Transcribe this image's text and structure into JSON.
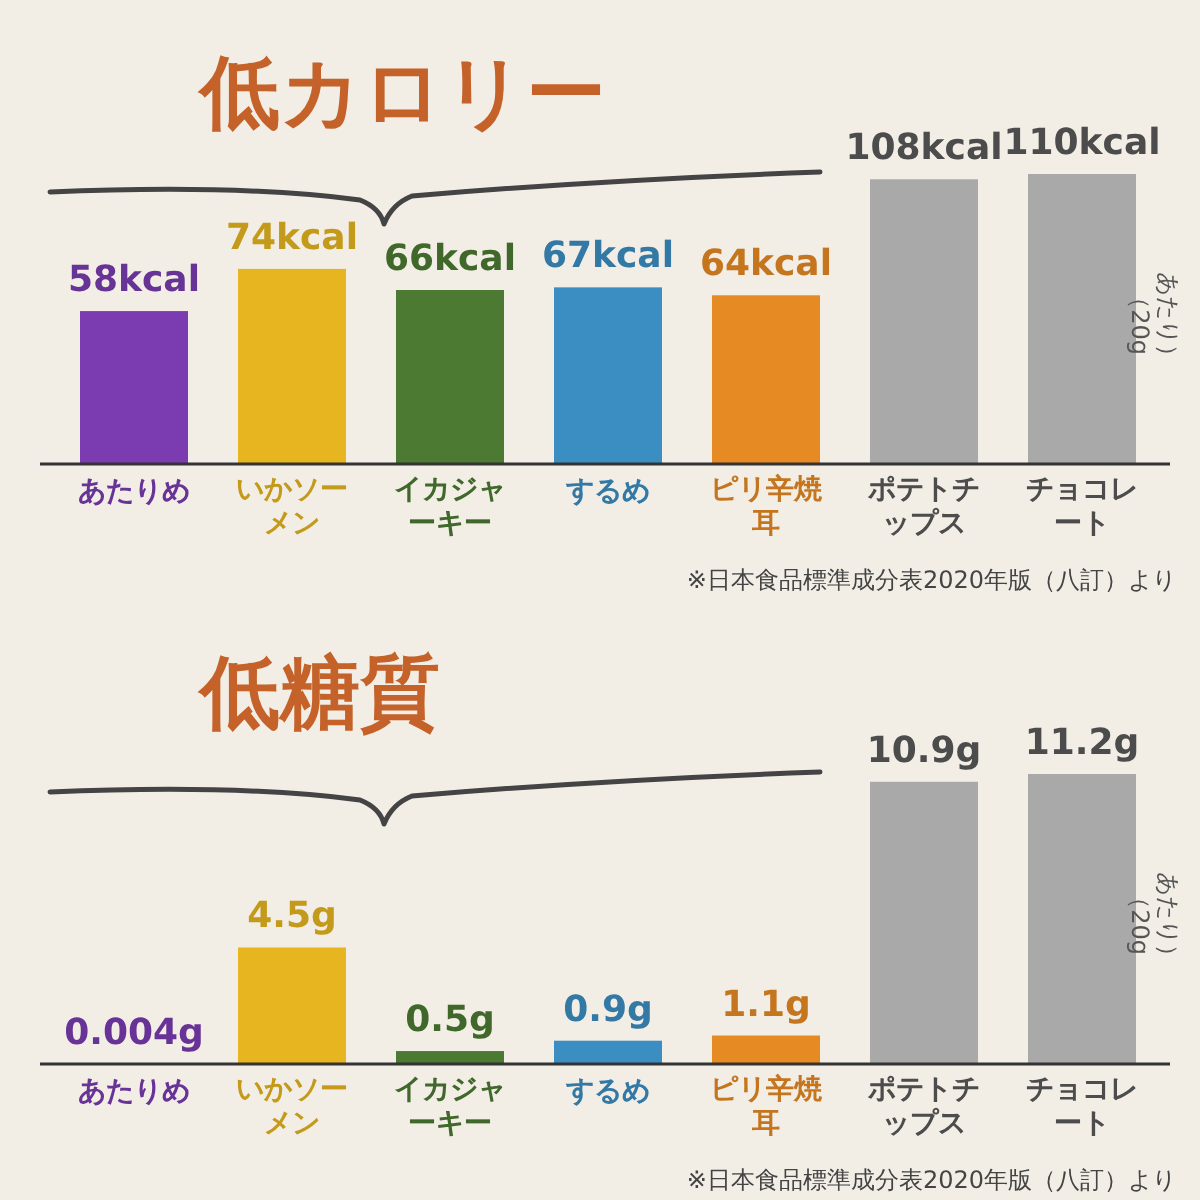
{
  "chart_data": [
    {
      "type": "bar",
      "title": "低カロリー",
      "categories": [
        "あたりめ",
        "いかソーメン",
        "イカジャーキー",
        "するめ",
        "ピリ辛焼耳",
        "ポテトチップス",
        "チョコレート"
      ],
      "values": [
        58,
        74,
        66,
        67,
        64,
        108,
        110
      ],
      "colors": [
        "#7a3cb0",
        "#e6b51f",
        "#4c7a33",
        "#3b8ec2",
        "#e68a23",
        "#a9a9a9",
        "#a9a9a9"
      ],
      "value_labels": [
        "58kcal",
        "74kcal",
        "66kcal",
        "67kcal",
        "64kcal",
        "108kcal",
        "110kcal"
      ],
      "annotations": [
        "（20g\nあたり）",
        "※日本食品標準成分表2020年版（八訂）より"
      ]
    },
    {
      "type": "bar",
      "title": "低糖質",
      "categories": [
        "あたりめ",
        "いかソーメン",
        "イカジャーキー",
        "するめ",
        "ピリ辛焼耳",
        "ポテトチップス",
        "チョコレート"
      ],
      "values": [
        0.004,
        4.5,
        0.5,
        0.9,
        1.1,
        10.9,
        11.2
      ],
      "colors": [
        "#7a3cb0",
        "#e6b51f",
        "#4c7a33",
        "#3b8ec2",
        "#e68a23",
        "#a9a9a9",
        "#a9a9a9"
      ],
      "value_labels": [
        "0.004g",
        "4.5g",
        "0.5g",
        "0.9g",
        "1.1g",
        "10.9g",
        "11.2g"
      ],
      "annotations": [
        "（20g\nあたり）",
        "※日本食品標準成分表2020年版（八訂）より"
      ]
    }
  ]
}
